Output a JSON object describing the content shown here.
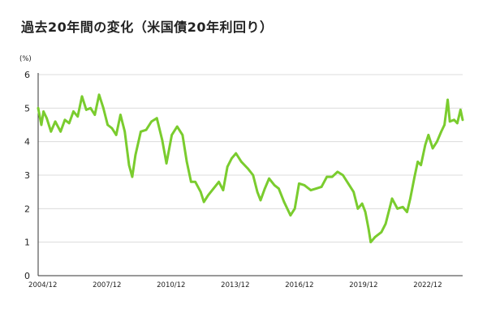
{
  "chart_data": {
    "type": "line",
    "title": "過去20年間の変化（米国債20年利回り）",
    "ylabel": "(%)",
    "xlabel": "",
    "ylim": [
      0,
      6
    ],
    "yticks": [
      "0",
      "1",
      "2",
      "3",
      "4",
      "5",
      "6"
    ],
    "xlim": [
      2004.7,
      2024.55
    ],
    "xtick_labels": [
      "2004/12",
      "2007/12",
      "2010/12",
      "2013/12",
      "2016/12",
      "2019/12",
      "2022/12"
    ],
    "grid": true,
    "legend": "none",
    "line_color": "#7acc2e",
    "grid_color": "#dcdcdc",
    "axis_color": "#333333",
    "series": [
      {
        "values": [
          [
            2004.7,
            5.0
          ],
          [
            2004.85,
            4.5
          ],
          [
            2004.95,
            4.9
          ],
          [
            2005.1,
            4.7
          ],
          [
            2005.3,
            4.3
          ],
          [
            2005.5,
            4.6
          ],
          [
            2005.75,
            4.3
          ],
          [
            2005.95,
            4.65
          ],
          [
            2006.15,
            4.55
          ],
          [
            2006.35,
            4.9
          ],
          [
            2006.55,
            4.75
          ],
          [
            2006.75,
            5.35
          ],
          [
            2006.95,
            4.95
          ],
          [
            2007.15,
            5.0
          ],
          [
            2007.35,
            4.8
          ],
          [
            2007.55,
            5.4
          ],
          [
            2007.75,
            5.0
          ],
          [
            2007.95,
            4.5
          ],
          [
            2008.15,
            4.4
          ],
          [
            2008.35,
            4.2
          ],
          [
            2008.55,
            4.8
          ],
          [
            2008.75,
            4.3
          ],
          [
            2008.95,
            3.3
          ],
          [
            2009.1,
            2.95
          ],
          [
            2009.25,
            3.6
          ],
          [
            2009.5,
            4.3
          ],
          [
            2009.75,
            4.35
          ],
          [
            2010.0,
            4.6
          ],
          [
            2010.25,
            4.7
          ],
          [
            2010.5,
            4.05
          ],
          [
            2010.7,
            3.35
          ],
          [
            2010.95,
            4.2
          ],
          [
            2011.2,
            4.45
          ],
          [
            2011.45,
            4.2
          ],
          [
            2011.65,
            3.4
          ],
          [
            2011.85,
            2.8
          ],
          [
            2012.05,
            2.8
          ],
          [
            2012.3,
            2.5
          ],
          [
            2012.45,
            2.2
          ],
          [
            2012.65,
            2.4
          ],
          [
            2012.9,
            2.6
          ],
          [
            2013.15,
            2.8
          ],
          [
            2013.35,
            2.55
          ],
          [
            2013.55,
            3.25
          ],
          [
            2013.75,
            3.5
          ],
          [
            2013.95,
            3.65
          ],
          [
            2014.2,
            3.4
          ],
          [
            2014.5,
            3.2
          ],
          [
            2014.75,
            3.0
          ],
          [
            2014.95,
            2.5
          ],
          [
            2015.1,
            2.25
          ],
          [
            2015.3,
            2.6
          ],
          [
            2015.5,
            2.9
          ],
          [
            2015.75,
            2.7
          ],
          [
            2015.95,
            2.6
          ],
          [
            2016.2,
            2.2
          ],
          [
            2016.5,
            1.8
          ],
          [
            2016.7,
            2.0
          ],
          [
            2016.9,
            2.75
          ],
          [
            2017.15,
            2.7
          ],
          [
            2017.45,
            2.55
          ],
          [
            2017.7,
            2.6
          ],
          [
            2017.95,
            2.65
          ],
          [
            2018.2,
            2.95
          ],
          [
            2018.45,
            2.95
          ],
          [
            2018.7,
            3.1
          ],
          [
            2018.95,
            3.0
          ],
          [
            2019.2,
            2.75
          ],
          [
            2019.45,
            2.5
          ],
          [
            2019.65,
            2.0
          ],
          [
            2019.85,
            2.15
          ],
          [
            2020.0,
            1.9
          ],
          [
            2020.15,
            1.4
          ],
          [
            2020.25,
            1.0
          ],
          [
            2020.45,
            1.15
          ],
          [
            2020.75,
            1.3
          ],
          [
            2020.95,
            1.55
          ],
          [
            2021.15,
            2.05
          ],
          [
            2021.25,
            2.3
          ],
          [
            2021.5,
            2.0
          ],
          [
            2021.75,
            2.05
          ],
          [
            2021.95,
            1.9
          ],
          [
            2022.1,
            2.3
          ],
          [
            2022.3,
            2.95
          ],
          [
            2022.45,
            3.4
          ],
          [
            2022.6,
            3.3
          ],
          [
            2022.8,
            3.9
          ],
          [
            2022.95,
            4.2
          ],
          [
            2023.15,
            3.8
          ],
          [
            2023.35,
            4.0
          ],
          [
            2023.55,
            4.3
          ],
          [
            2023.7,
            4.5
          ],
          [
            2023.85,
            5.25
          ],
          [
            2023.95,
            4.6
          ],
          [
            2024.15,
            4.65
          ],
          [
            2024.3,
            4.55
          ],
          [
            2024.45,
            4.95
          ],
          [
            2024.55,
            4.65
          ]
        ]
      }
    ]
  }
}
